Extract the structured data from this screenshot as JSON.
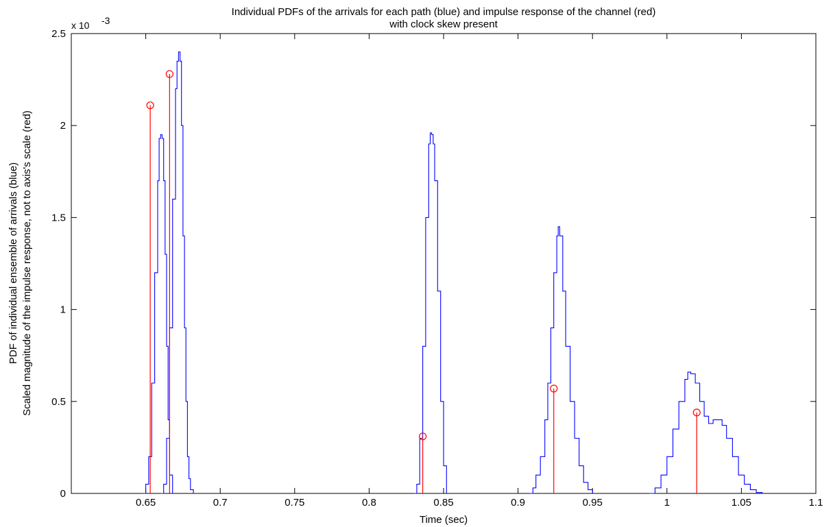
{
  "chart_data": {
    "type": "line",
    "title": "Individual PDFs  of the arrivals for each path (blue) and impulse response of the channel (red)",
    "subtitle": "with clock skew present",
    "xlabel": "Time (sec)",
    "ylabel_line1": "PDF of individual ensemble of arrivals (blue)",
    "ylabel_line2": "Scaled magnitude of the impulse response, not to axis's scale (red)",
    "y_multiplier": "x 10",
    "y_multiplier_exp": "-3",
    "xlim": [
      0.6,
      1.1
    ],
    "ylim": [
      0,
      0.0025
    ],
    "x_ticks": [
      0.65,
      0.7,
      0.75,
      0.8,
      0.85,
      0.9,
      0.95,
      1.0,
      1.05,
      1.1
    ],
    "x_tick_labels": [
      "0.65",
      "0.7",
      "0.75",
      "0.8",
      "0.85",
      "0.9",
      "0.95",
      "1",
      "1.05",
      "1.1"
    ],
    "y_ticks": [
      0,
      0.0005,
      0.001,
      0.0015,
      0.002,
      0.0025
    ],
    "y_tick_labels": [
      "0",
      "0.5",
      "1",
      "1.5",
      "2",
      "2.5"
    ],
    "colors": {
      "pdf": "#0000ff",
      "impulse": "#ff0000"
    },
    "series": [
      {
        "kind": "pdf",
        "x": [
          0.648,
          0.65,
          0.652,
          0.654,
          0.656,
          0.658,
          0.659,
          0.66,
          0.661,
          0.662,
          0.663,
          0.664,
          0.665,
          0.666,
          0.668
        ],
        "y": [
          0,
          5e-05,
          0.0002,
          0.0006,
          0.0012,
          0.0017,
          0.00193,
          0.00195,
          0.00193,
          0.0017,
          0.0013,
          0.0008,
          0.0004,
          0.0001,
          0
        ]
      },
      {
        "kind": "pdf",
        "x": [
          0.66,
          0.662,
          0.664,
          0.666,
          0.668,
          0.67,
          0.671,
          0.672,
          0.673,
          0.674,
          0.675,
          0.676,
          0.677,
          0.678,
          0.679,
          0.68,
          0.682
        ],
        "y": [
          0,
          5e-05,
          0.0003,
          0.0009,
          0.0016,
          0.0022,
          0.00235,
          0.0024,
          0.00235,
          0.002,
          0.0014,
          0.0009,
          0.0005,
          0.0002,
          8e-05,
          2e-05,
          0
        ]
      },
      {
        "kind": "pdf",
        "x": [
          0.83,
          0.832,
          0.834,
          0.836,
          0.838,
          0.84,
          0.841,
          0.842,
          0.843,
          0.844,
          0.846,
          0.848,
          0.85,
          0.852
        ],
        "y": [
          0,
          5e-05,
          0.0003,
          0.0008,
          0.0015,
          0.0019,
          0.00196,
          0.00195,
          0.0019,
          0.0017,
          0.0011,
          0.0005,
          0.00015,
          0
        ]
      },
      {
        "kind": "pdf",
        "x": [
          0.908,
          0.91,
          0.912,
          0.915,
          0.918,
          0.92,
          0.922,
          0.924,
          0.926,
          0.927,
          0.928,
          0.93,
          0.932,
          0.935,
          0.938,
          0.941,
          0.944,
          0.947,
          0.95
        ],
        "y": [
          0,
          3e-05,
          0.0001,
          0.0002,
          0.0004,
          0.0006,
          0.0009,
          0.0012,
          0.0014,
          0.00145,
          0.0014,
          0.0011,
          0.0008,
          0.0005,
          0.0003,
          0.00015,
          6e-05,
          2e-05,
          0
        ]
      },
      {
        "kind": "pdf",
        "x": [
          0.988,
          0.992,
          0.996,
          1.0,
          1.004,
          1.008,
          1.012,
          1.014,
          1.016,
          1.019,
          1.022,
          1.025,
          1.028,
          1.031,
          1.034,
          1.037,
          1.04,
          1.044,
          1.048,
          1.052,
          1.056,
          1.06,
          1.064
        ],
        "y": [
          0,
          3e-05,
          0.0001,
          0.0002,
          0.00035,
          0.0005,
          0.00062,
          0.00066,
          0.00065,
          0.0006,
          0.0005,
          0.00042,
          0.00038,
          0.0004,
          0.0004,
          0.00037,
          0.0003,
          0.0002,
          0.0001,
          5e-05,
          2e-05,
          5e-06,
          0
        ]
      }
    ],
    "impulse_response": {
      "x": [
        0.653,
        0.666,
        0.836,
        0.924,
        1.02
      ],
      "y": [
        0.00211,
        0.00228,
        0.00031,
        0.00057,
        0.00044
      ]
    }
  }
}
